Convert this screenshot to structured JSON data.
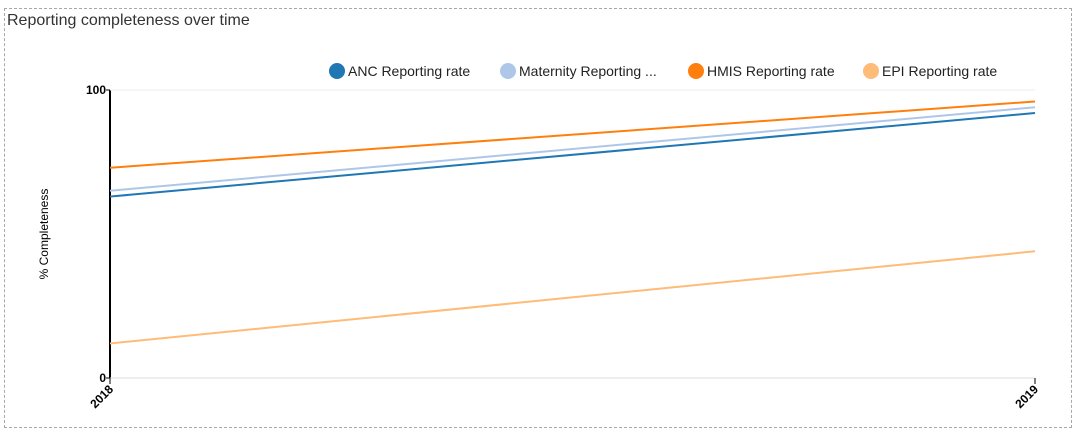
{
  "chart_data": {
    "type": "line",
    "title": "Reporting completeness over time",
    "xlabel": "",
    "ylabel": "% Completeness",
    "categories": [
      "2018",
      "2019"
    ],
    "ylim": [
      0,
      100
    ],
    "yticks": [
      "0",
      "100"
    ],
    "legend_position": "top-right",
    "grid": false,
    "series": [
      {
        "name": "ANC Reporting rate",
        "legend_label": "ANC Reporting rate",
        "color": "#1f77b4",
        "values": [
          63,
          92
        ]
      },
      {
        "name": "Maternity Reporting rate",
        "legend_label": "Maternity Reporting ...",
        "color": "#aec7e8",
        "values": [
          65,
          94
        ]
      },
      {
        "name": "HMIS Reporting rate",
        "legend_label": "HMIS Reporting rate",
        "color": "#ff7f0e",
        "values": [
          73,
          96
        ]
      },
      {
        "name": "EPI Reporting rate",
        "legend_label": "EPI Reporting rate",
        "color": "#ffbb78",
        "values": [
          12,
          44
        ]
      }
    ]
  }
}
